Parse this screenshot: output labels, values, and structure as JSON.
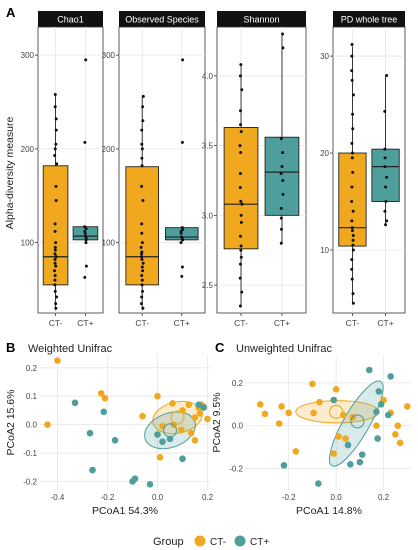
{
  "colors": {
    "ct_minus": "#f0a81e",
    "ct_plus": "#4e9e9b",
    "strip_bg": "#111111",
    "strip_fg": "#ffffff",
    "grid": "#e6e6e6",
    "axis_text": "#444444"
  },
  "panel_a": {
    "label": "A",
    "ylabel": "Alpha-diversity measure"
  },
  "panel_b": {
    "label": "B",
    "title": "Weighted Unifrac"
  },
  "panel_c": {
    "label": "C",
    "title": "Unweighted Unifrac"
  },
  "legend": {
    "title": "Group",
    "items": [
      {
        "label": "CT-",
        "color_key": "ct_minus"
      },
      {
        "label": "CT+",
        "color_key": "ct_plus"
      }
    ]
  },
  "chart_data": [
    {
      "type": "box",
      "title": "Chao1",
      "categories": [
        "CT-",
        "CT+"
      ],
      "ylim": [
        25,
        330
      ],
      "yticks": [
        100,
        200,
        300
      ],
      "boxes": [
        {
          "group": "CT-",
          "min": 28,
          "q1": 55,
          "median": 85,
          "q3": 182,
          "max": 258
        },
        {
          "group": "CT+",
          "min": 100,
          "q1": 103,
          "median": 107,
          "q3": 117,
          "max": 117
        }
      ],
      "points": [
        {
          "group": "CT-",
          "values": [
            258,
            245,
            232,
            220,
            205,
            200,
            193,
            184,
            160,
            145,
            120,
            112,
            100,
            95,
            92,
            88,
            85,
            82,
            78,
            75,
            70,
            65,
            60,
            55,
            48,
            42,
            35,
            30
          ]
        },
        {
          "group": "CT+",
          "values": [
            295,
            207,
            117,
            115,
            112,
            110,
            107,
            105,
            103,
            100,
            75,
            63
          ]
        }
      ]
    },
    {
      "type": "box",
      "title": "Observed Species",
      "categories": [
        "CT-",
        "CT+"
      ],
      "ylim": [
        25,
        330
      ],
      "yticks": [
        100,
        200,
        300
      ],
      "boxes": [
        {
          "group": "CT-",
          "min": 28,
          "q1": 55,
          "median": 85,
          "q3": 181,
          "max": 256
        },
        {
          "group": "CT+",
          "min": 100,
          "q1": 103,
          "median": 106,
          "q3": 116,
          "max": 116
        }
      ],
      "points": [
        {
          "group": "CT-",
          "values": [
            256,
            245,
            230,
            220,
            205,
            200,
            190,
            182,
            160,
            145,
            120,
            110,
            100,
            95,
            90,
            88,
            85,
            82,
            78,
            74,
            70,
            65,
            60,
            55,
            48,
            42,
            35,
            30
          ]
        },
        {
          "group": "CT+",
          "values": [
            295,
            207,
            116,
            114,
            112,
            110,
            106,
            104,
            103,
            100,
            74,
            64
          ]
        }
      ]
    },
    {
      "type": "box",
      "title": "Shannon",
      "categories": [
        "CT-",
        "CT+"
      ],
      "ylim": [
        2.3,
        4.35
      ],
      "yticks": [
        2.5,
        3.0,
        3.5,
        4.0
      ],
      "boxes": [
        {
          "group": "CT-",
          "min": 2.35,
          "q1": 2.76,
          "median": 3.08,
          "q3": 3.63,
          "max": 4.07
        },
        {
          "group": "CT+",
          "min": 2.8,
          "q1": 3.0,
          "median": 3.31,
          "q3": 3.56,
          "max": 4.3
        }
      ],
      "points": [
        {
          "group": "CT-",
          "values": [
            4.08,
            4.0,
            3.9,
            3.75,
            3.65,
            3.6,
            3.5,
            3.45,
            3.3,
            3.2,
            3.1,
            3.08,
            3.0,
            2.95,
            2.85,
            2.78,
            2.75,
            2.7,
            2.65,
            2.55,
            2.45,
            2.35
          ]
        },
        {
          "group": "CT+",
          "values": [
            4.3,
            4.2,
            3.55,
            3.45,
            3.35,
            3.3,
            3.25,
            3.15,
            3.05,
            2.98,
            2.9,
            2.8
          ]
        }
      ]
    },
    {
      "type": "box",
      "title": "PD whole tree",
      "categories": [
        "CT-",
        "CT+"
      ],
      "ylim": [
        3.5,
        33
      ],
      "yticks": [
        10,
        20,
        30
      ],
      "boxes": [
        {
          "group": "CT-",
          "min": 4.5,
          "q1": 10.4,
          "median": 12.3,
          "q3": 20,
          "max": 31
        },
        {
          "group": "CT+",
          "min": 12.6,
          "q1": 15,
          "median": 18.6,
          "q3": 20.4,
          "max": 28
        }
      ],
      "points": [
        {
          "group": "CT-",
          "values": [
            31.2,
            30,
            28.5,
            27.5,
            26,
            24,
            22.5,
            21,
            20,
            19.5,
            18,
            16.5,
            15,
            14,
            13,
            12.3,
            12,
            11.5,
            11,
            10.5,
            10,
            9,
            8,
            7,
            5.5,
            4.5
          ]
        },
        {
          "group": "CT+",
          "values": [
            28,
            24.3,
            20.4,
            19.5,
            18.6,
            17.5,
            16.5,
            15,
            14,
            13,
            12.6
          ]
        }
      ]
    },
    {
      "type": "scatter",
      "title": "Weighted Unifrac",
      "xlabel": "PCoA1 54.3%",
      "ylabel": "PCoA2 15.6%",
      "xlim": [
        -0.47,
        0.21
      ],
      "ylim": [
        -0.23,
        0.245
      ],
      "xticks": [
        -0.4,
        -0.2,
        0.0,
        0.2
      ],
      "yticks": [
        -0.2,
        -0.1,
        0.0,
        0.1,
        0.2
      ],
      "series": [
        {
          "name": "CT-",
          "points": [
            [
              -0.4,
              0.225
            ],
            [
              -0.44,
              0.0
            ],
            [
              -0.225,
              0.11
            ],
            [
              -0.21,
              0.093
            ],
            [
              -0.06,
              0.03
            ],
            [
              0.0,
              0.1
            ],
            [
              0.06,
              0.075
            ],
            [
              0.1,
              0.05
            ],
            [
              0.125,
              0.07
            ],
            [
              0.15,
              0.025
            ],
            [
              0.165,
              0.06
            ],
            [
              0.175,
              0.07
            ],
            [
              0.185,
              0.063
            ],
            [
              0.2,
              0.02
            ],
            [
              0.02,
              -0.005
            ],
            [
              0.065,
              0.0
            ],
            [
              0.095,
              -0.018
            ],
            [
              0.135,
              -0.03
            ],
            [
              0.15,
              -0.055
            ],
            [
              0.01,
              -0.115
            ],
            [
              0.17,
              0.04
            ]
          ]
        },
        {
          "name": "CT+",
          "points": [
            [
              -0.33,
              0.077
            ],
            [
              -0.215,
              0.045
            ],
            [
              -0.27,
              -0.03
            ],
            [
              -0.17,
              -0.055
            ],
            [
              -0.26,
              -0.16
            ],
            [
              -0.09,
              -0.19
            ],
            [
              -0.1,
              -0.2
            ],
            [
              -0.03,
              -0.21
            ],
            [
              0.0,
              -0.035
            ],
            [
              0.02,
              -0.06
            ],
            [
              0.05,
              -0.05
            ],
            [
              0.1,
              -0.12
            ],
            [
              0.165,
              0.07
            ],
            [
              0.185,
              0.06
            ]
          ]
        }
      ],
      "ellipses": [
        {
          "group": "CT-",
          "cx": 0.08,
          "cy": 0.025,
          "rx": 0.1,
          "ry": 0.055,
          "angle": -12,
          "centroid": [
            0.08,
            0.025
          ]
        },
        {
          "group": "CT+",
          "cx": 0.05,
          "cy": -0.02,
          "rx": 0.105,
          "ry": 0.06,
          "angle": -20,
          "centroid": [
            0.05,
            -0.02
          ]
        }
      ]
    },
    {
      "type": "scatter",
      "title": "Unweighted Unifrac",
      "xlabel": "PCoA1 14.8%",
      "ylabel": "PCoA2 9.5%",
      "xlim": [
        -0.38,
        0.32
      ],
      "ylim": [
        -0.3,
        0.33
      ],
      "xticks": [
        -0.2,
        0.0,
        0.2
      ],
      "yticks": [
        -0.2,
        0.0,
        0.2
      ],
      "series": [
        {
          "name": "CT-",
          "points": [
            [
              -0.32,
              0.1
            ],
            [
              -0.3,
              0.055
            ],
            [
              -0.24,
              0.01
            ],
            [
              -0.23,
              0.09
            ],
            [
              -0.2,
              0.06
            ],
            [
              -0.17,
              -0.12
            ],
            [
              -0.1,
              0.195
            ],
            [
              -0.095,
              0.06
            ],
            [
              -0.07,
              0.11
            ],
            [
              0.0,
              0.17
            ],
            [
              -0.01,
              -0.13
            ],
            [
              0.01,
              -0.05
            ],
            [
              0.03,
              0.05
            ],
            [
              0.04,
              -0.06
            ],
            [
              0.07,
              0.04
            ],
            [
              0.17,
              0.0
            ],
            [
              0.2,
              0.12
            ],
            [
              0.23,
              0.06
            ],
            [
              0.26,
              0.0
            ],
            [
              0.3,
              0.09
            ],
            [
              0.27,
              -0.08
            ],
            [
              0.25,
              -0.04
            ]
          ]
        },
        {
          "name": "CT+",
          "points": [
            [
              -0.22,
              -0.185
            ],
            [
              -0.075,
              -0.27
            ],
            [
              -0.01,
              0.12
            ],
            [
              0.05,
              -0.09
            ],
            [
              0.06,
              -0.18
            ],
            [
              0.1,
              -0.17
            ],
            [
              0.14,
              0.26
            ],
            [
              0.18,
              0.16
            ],
            [
              0.17,
              0.065
            ],
            [
              0.175,
              -0.06
            ],
            [
              0.19,
              0.1
            ],
            [
              0.22,
              0.05
            ],
            [
              0.23,
              0.23
            ],
            [
              0.11,
              -0.135
            ]
          ]
        }
      ],
      "ellipses": [
        {
          "group": "CT-",
          "cx": 0.005,
          "cy": 0.065,
          "rx": 0.175,
          "ry": 0.052,
          "angle": 0,
          "centroid": [
            0.0,
            0.065
          ]
        },
        {
          "group": "CT+",
          "cx": 0.085,
          "cy": 0.01,
          "rx": 0.205,
          "ry": 0.06,
          "angle": -60,
          "centroid": [
            0.09,
            0.02
          ]
        }
      ]
    }
  ]
}
